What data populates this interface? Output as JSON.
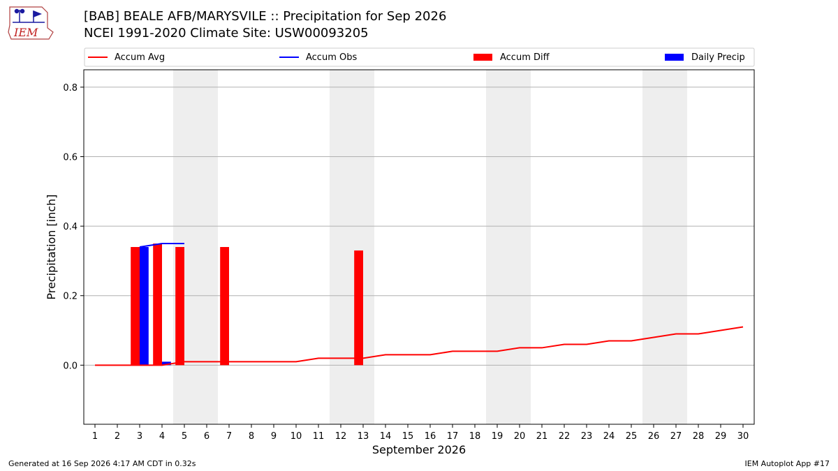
{
  "header": {
    "logo_text": "IEM",
    "title_line1": "[BAB] BEALE AFB/MARYSVILE :: Precipitation for Sep 2026",
    "title_line2": "NCEI 1991-2020 Climate Site: USW00093205"
  },
  "footer": {
    "left": "Generated at 16 Sep 2026 4:17 AM CDT in 0.32s",
    "right": "IEM Autoplot App #17"
  },
  "colors": {
    "accum_avg": "#ff0000",
    "accum_obs": "#0000ff",
    "accum_diff": "#ff0000",
    "daily_precip": "#0000ff",
    "weekend_shade": "#eeeeee",
    "grid": "#b0b0b0"
  },
  "chart_data": {
    "type": "bar",
    "xlabel": "September 2026",
    "ylabel": "Precipitation [inch]",
    "xlim": [
      0.5,
      30.5
    ],
    "ylim": [
      -0.17,
      0.85
    ],
    "yticks": [
      0.0,
      0.2,
      0.4,
      0.6,
      0.8
    ],
    "ytick_labels": [
      "0.0",
      "0.2",
      "0.4",
      "0.6",
      "0.8"
    ],
    "xticks": [
      1,
      2,
      3,
      4,
      5,
      6,
      7,
      8,
      9,
      10,
      11,
      12,
      13,
      14,
      15,
      16,
      17,
      18,
      19,
      20,
      21,
      22,
      23,
      24,
      25,
      26,
      27,
      28,
      29,
      30
    ],
    "grid": "horizontal",
    "legend_placement": "top",
    "weekend_spans": [
      [
        4.5,
        6.5
      ],
      [
        11.5,
        13.5
      ],
      [
        18.5,
        20.5
      ],
      [
        25.5,
        27.5
      ]
    ],
    "series": [
      {
        "name": "Accum Avg",
        "kind": "line",
        "x": [
          1,
          2,
          3,
          4,
          5,
          6,
          7,
          8,
          9,
          10,
          11,
          12,
          13,
          14,
          15,
          16,
          17,
          18,
          19,
          20,
          21,
          22,
          23,
          24,
          25,
          26,
          27,
          28,
          29,
          30
        ],
        "values": [
          0.0,
          0.0,
          0.0,
          0.0,
          0.01,
          0.01,
          0.01,
          0.01,
          0.01,
          0.01,
          0.02,
          0.02,
          0.02,
          0.03,
          0.03,
          0.03,
          0.04,
          0.04,
          0.04,
          0.05,
          0.05,
          0.06,
          0.06,
          0.07,
          0.07,
          0.08,
          0.09,
          0.09,
          0.1,
          0.11
        ]
      },
      {
        "name": "Accum Obs",
        "kind": "line",
        "x": [
          3,
          4,
          5
        ],
        "values": [
          0.34,
          0.35,
          0.35
        ]
      },
      {
        "name": "Accum Diff",
        "kind": "bar",
        "x": [
          3,
          4,
          5,
          7,
          13
        ],
        "values": [
          0.34,
          0.35,
          0.34,
          0.34,
          0.33
        ]
      },
      {
        "name": "Daily Precip",
        "kind": "bar",
        "x": [
          3,
          4
        ],
        "values": [
          0.34,
          0.01
        ]
      }
    ]
  }
}
